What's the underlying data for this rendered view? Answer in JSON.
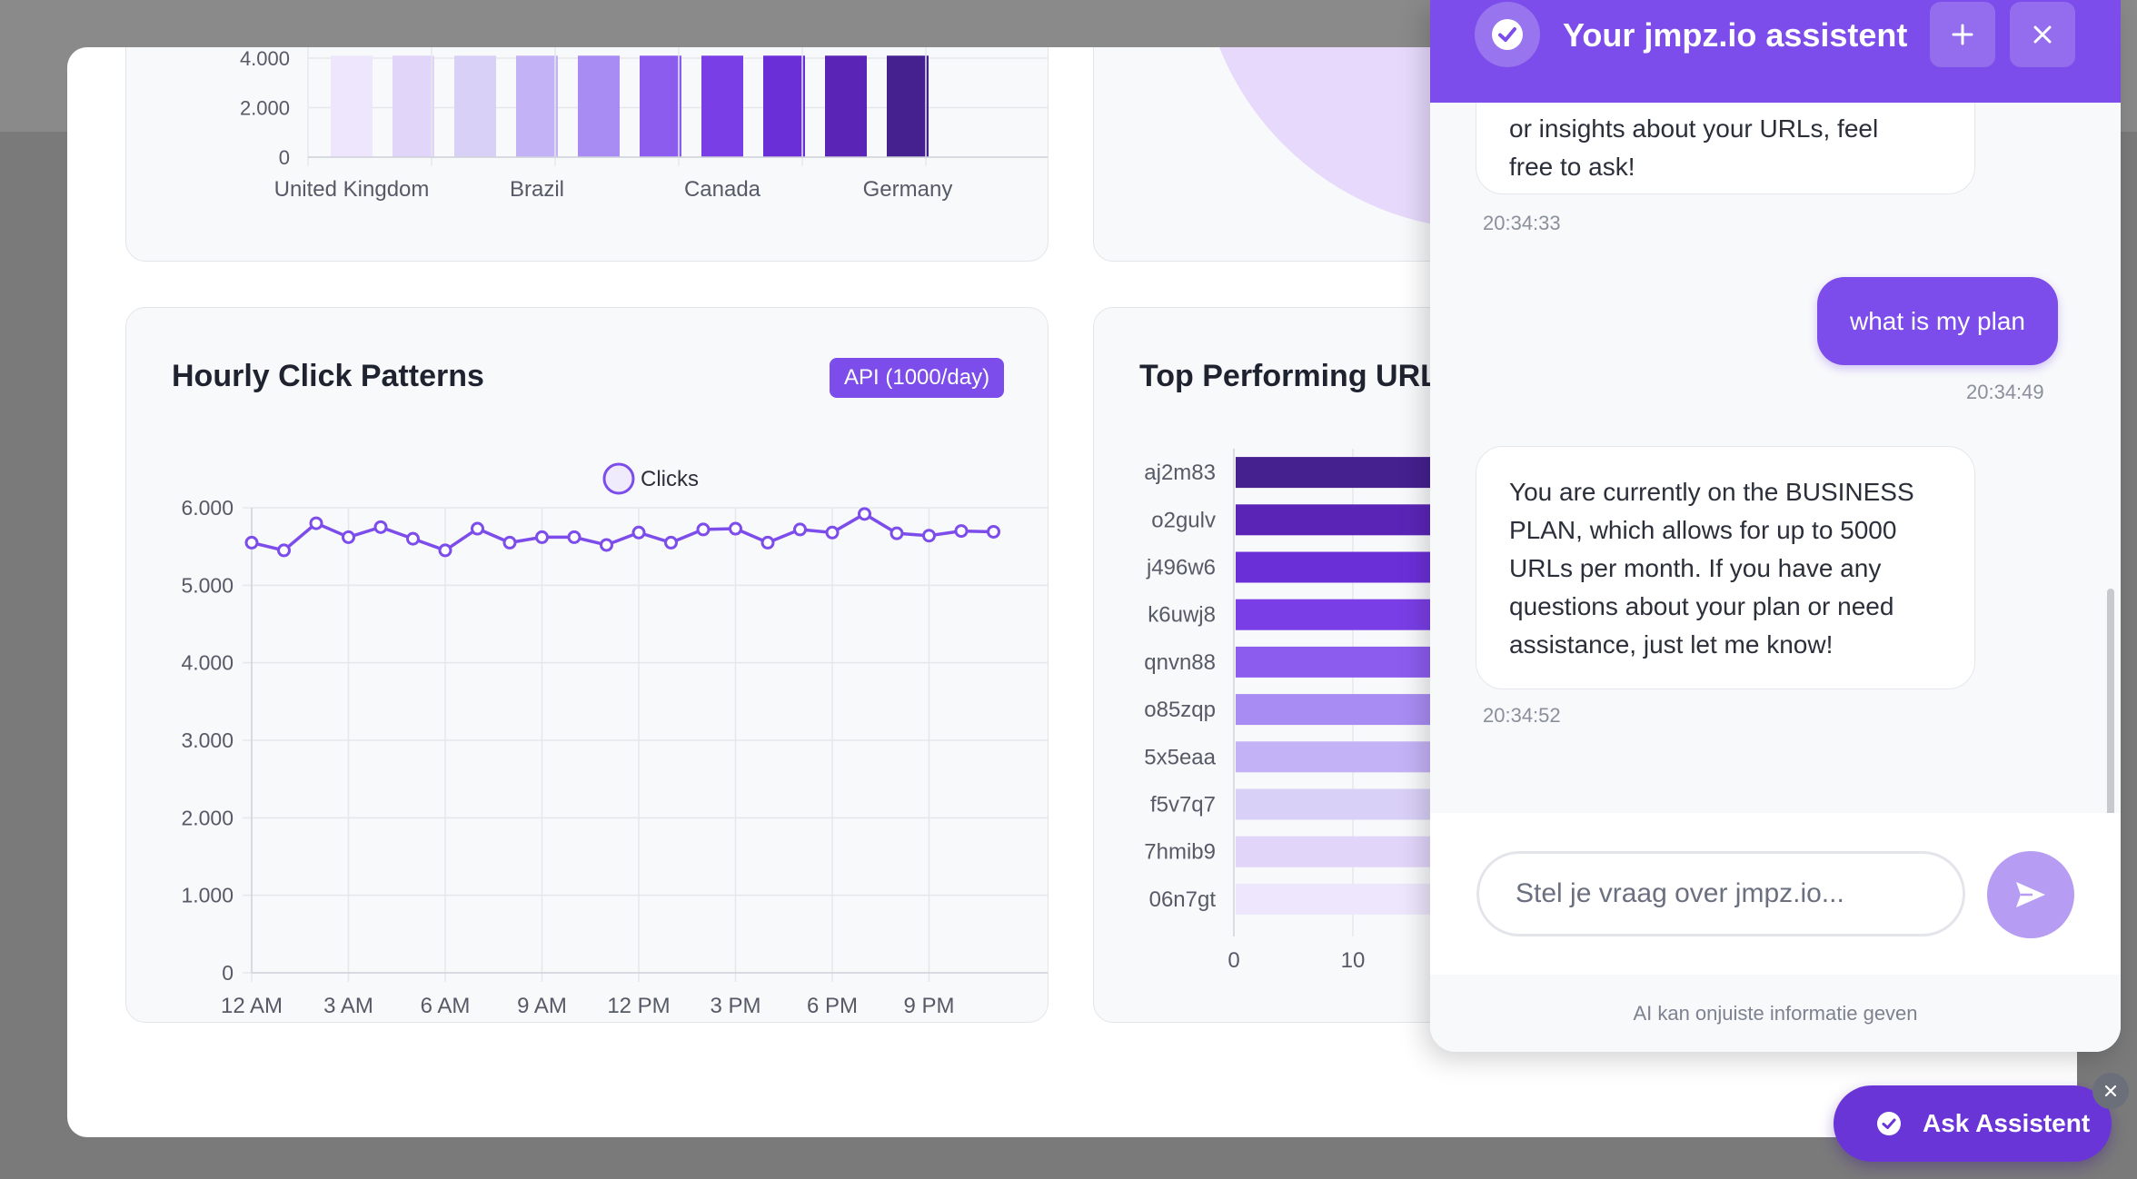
{
  "assistant": {
    "title": "Your jmpz.io assistent",
    "messages": [
      {
        "role": "assistant",
        "lines": [
          "or insights about your URLs, feel",
          "free to ask!"
        ],
        "time": "20:34:33"
      },
      {
        "role": "user",
        "text": "what is my plan",
        "time": "20:34:49"
      },
      {
        "role": "assistant",
        "lines": [
          "You are currently on the BUSINESS",
          "PLAN, which allows for up to 5000",
          "URLs per month. If you have any",
          "questions about your plan or need",
          "assistance, just let me know!"
        ],
        "time": "20:34:52"
      }
    ],
    "input_placeholder": "Stel je vraag over jmpz.io...",
    "disclaimer": "AI kan onjuiste informatie geven"
  },
  "ask_button": {
    "label": "Ask Assistent"
  },
  "hourly": {
    "title": "Hourly Click Patterns",
    "badge": "API (1000/day)"
  },
  "top_urls": {
    "title": "Top Performing URL"
  },
  "chart_data": [
    {
      "type": "bar",
      "categories": [
        "United Kingdom",
        "",
        "Brazil",
        "",
        "",
        "Canada",
        "",
        "",
        "Germany",
        ""
      ],
      "tick_labels": [
        "United Kingdom",
        "Brazil",
        "Canada",
        "Germany"
      ],
      "values": [
        4100,
        4100,
        4100,
        4100,
        4100,
        4100,
        4100,
        4100,
        4100,
        4100
      ],
      "ylim": [
        0,
        4000
      ],
      "yticks": [
        "0",
        "2.000",
        "4.000"
      ],
      "colors": [
        "#ede6fc",
        "#e2d5fa",
        "#d9d0f7",
        "#c4b2f6",
        "#a98cf3",
        "#8c5cef",
        "#7a3ee6",
        "#6b2fd8",
        "#5a25b6",
        "#45208f"
      ]
    },
    {
      "type": "line",
      "series": [
        {
          "name": "Clicks",
          "values": [
            5550,
            5450,
            5800,
            5620,
            5750,
            5600,
            5450,
            5730,
            5550,
            5620,
            5620,
            5520,
            5680,
            5550,
            5720,
            5730,
            5550,
            5720,
            5680,
            5920,
            5670,
            5640,
            5700,
            5690
          ]
        }
      ],
      "x_tick_labels": [
        "12 AM",
        "3 AM",
        "6 AM",
        "9 AM",
        "12 PM",
        "3 PM",
        "6 PM",
        "9 PM"
      ],
      "ylim": [
        0,
        6000
      ],
      "yticks": [
        "0",
        "1.000",
        "2.000",
        "3.000",
        "4.000",
        "5.000",
        "6.000"
      ],
      "color": "#7c4dea"
    },
    {
      "type": "bar",
      "orientation": "horizontal",
      "categories": [
        "aj2m83",
        "o2gulv",
        "j496w6",
        "k6uwj8",
        "qnvn88",
        "o85zqp",
        "5x5eaa",
        "f5v7q7",
        "7hmib9",
        "06n7gt"
      ],
      "xticks": [
        "0",
        "10"
      ],
      "colors": [
        "#45208f",
        "#5a25b6",
        "#6b2fd8",
        "#7a3ee6",
        "#8c5cef",
        "#a98cf3",
        "#c4b2f6",
        "#d9d0f7",
        "#e2d5fa",
        "#ede6fc"
      ]
    }
  ]
}
